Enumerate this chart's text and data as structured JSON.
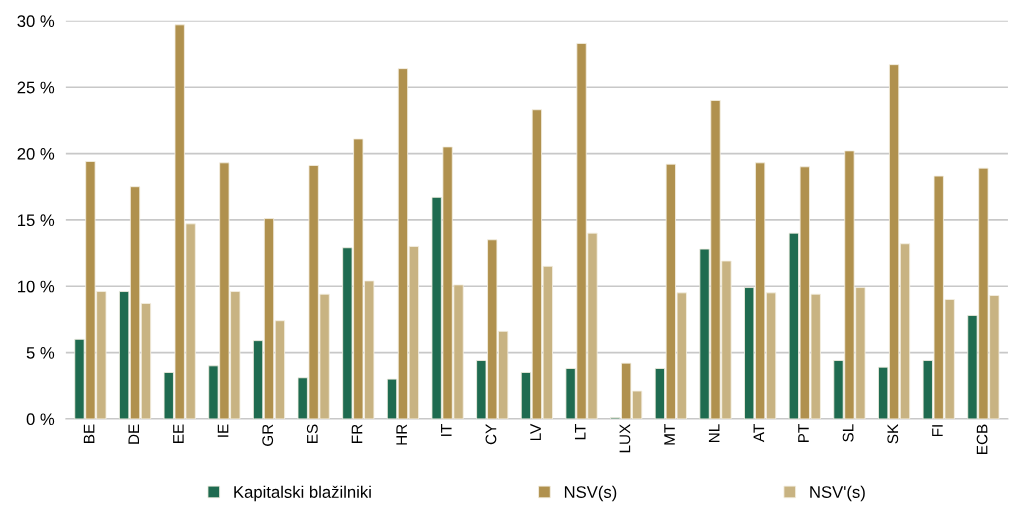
{
  "chart_data": {
    "type": "bar",
    "categories": [
      "BE",
      "DE",
      "EE",
      "IE",
      "GR",
      "ES",
      "FR",
      "HR",
      "IT",
      "CY",
      "LV",
      "LT",
      "LUX",
      "MT",
      "NL",
      "AT",
      "PT",
      "SL",
      "SK",
      "FI",
      "ECB"
    ],
    "series": [
      {
        "name": "Kapitalski blažilniki",
        "color": "#1f6b50",
        "values": [
          6.0,
          9.6,
          3.5,
          4.0,
          5.9,
          3.1,
          12.9,
          3.0,
          16.7,
          4.4,
          3.5,
          3.8,
          0.1,
          3.8,
          12.8,
          9.9,
          14.0,
          4.4,
          3.9,
          4.4,
          7.8
        ]
      },
      {
        "name": "NSV(s)",
        "color": "#b0914e",
        "values": [
          19.4,
          17.5,
          29.7,
          19.3,
          15.1,
          19.1,
          21.1,
          26.4,
          20.5,
          13.5,
          23.3,
          28.3,
          4.2,
          19.2,
          24.0,
          19.3,
          19.0,
          20.2,
          26.7,
          18.3,
          18.9
        ]
      },
      {
        "name": "NSV'(s)",
        "color": "#c8b382",
        "values": [
          9.6,
          8.7,
          14.7,
          9.6,
          7.4,
          9.4,
          10.4,
          13.0,
          10.1,
          6.6,
          11.5,
          14.0,
          2.1,
          9.5,
          11.9,
          9.5,
          9.4,
          9.9,
          13.2,
          9.0,
          9.3
        ]
      }
    ],
    "ylim": [
      0,
      30
    ],
    "yticks": [
      {
        "value": 0,
        "label": "0 %"
      },
      {
        "value": 5,
        "label": "5 %"
      },
      {
        "value": 10,
        "label": "10 %"
      },
      {
        "value": 15,
        "label": "15 %"
      },
      {
        "value": 20,
        "label": "20 %"
      },
      {
        "value": 25,
        "label": "25 %"
      },
      {
        "value": 30,
        "label": "30 %"
      }
    ],
    "grid": "y",
    "legend": "bottom"
  }
}
